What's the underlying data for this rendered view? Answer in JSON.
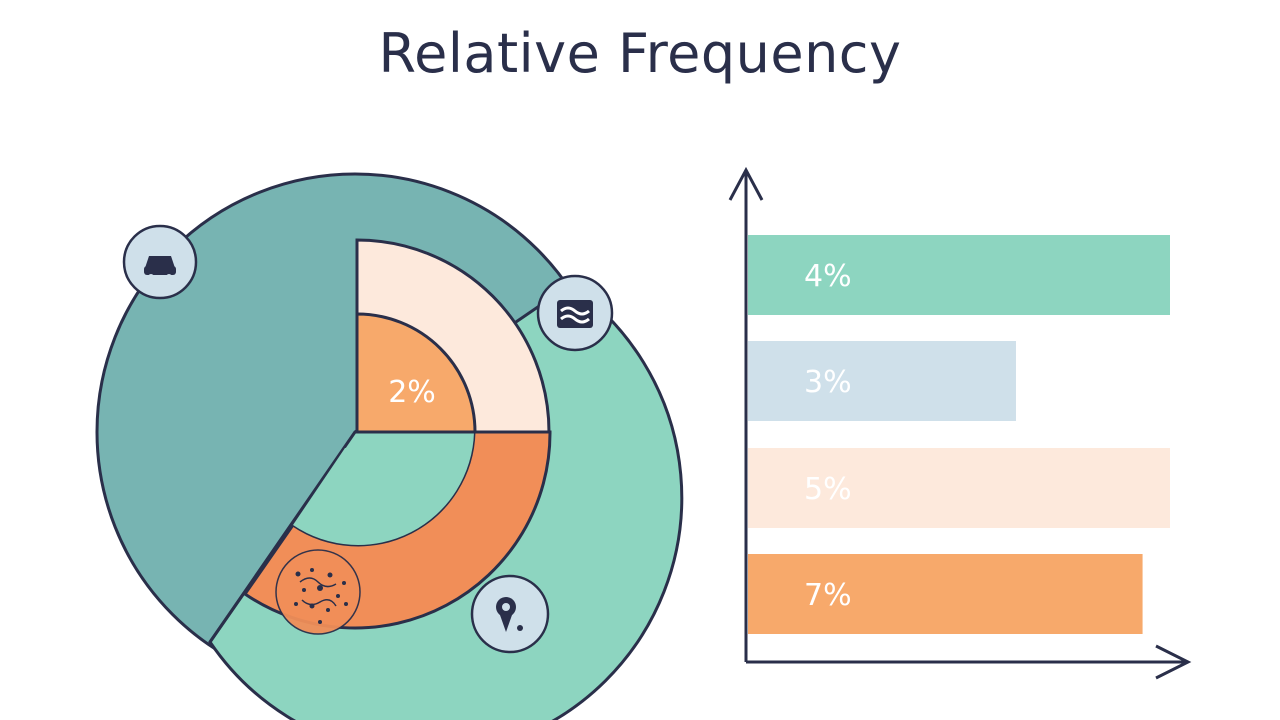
{
  "title": "Relative Frequency",
  "colors": {
    "mint": "#8dd5c0",
    "teal": "#77b4b2",
    "peach_light": "#fde9dc",
    "peach": "#f7a96b",
    "orange": "#f18e58",
    "blue_light": "#cfe0ea",
    "outline": "#2a2f4a"
  },
  "chart_data": [
    {
      "type": "pie",
      "title": "",
      "labels": [
        "2%"
      ],
      "icons": [
        "car-icon",
        "wave-flag-icon",
        "location-pin-icon",
        "cluster-doodle-icon"
      ]
    },
    {
      "type": "bar",
      "orientation": "horizontal",
      "categories": [
        "4%",
        "3%",
        "5%",
        "7%"
      ],
      "values": [
        4,
        3,
        5,
        7
      ],
      "bar_colors": [
        "#8dd5c0",
        "#cfe0ea",
        "#fde9dc",
        "#f7a96b"
      ],
      "xlabel": "",
      "ylabel": "",
      "grid": false
    }
  ]
}
